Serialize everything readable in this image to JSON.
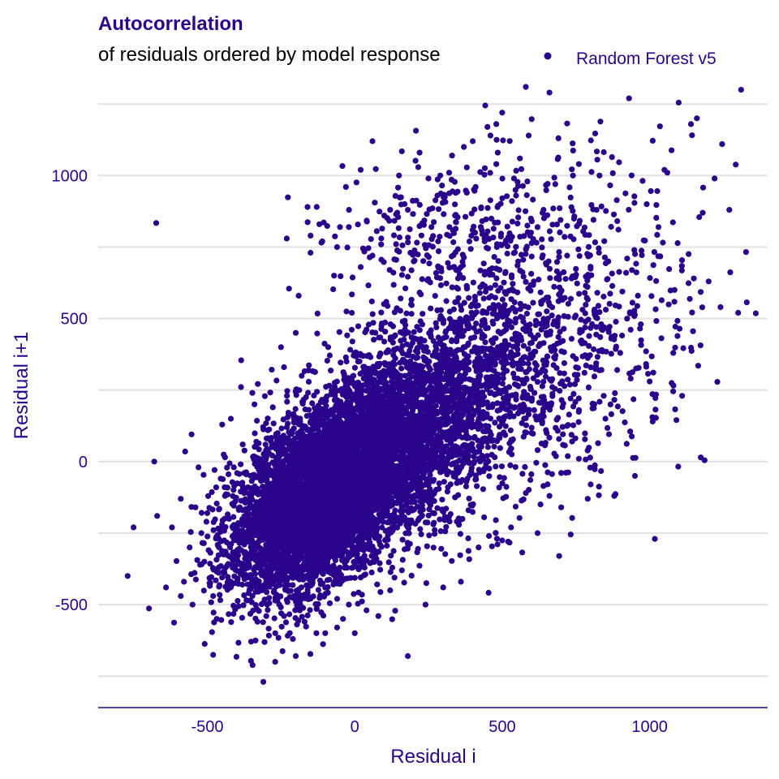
{
  "chart_data": {
    "type": "scatter",
    "title": "Autocorrelation",
    "subtitle": "of residuals ordered by model response",
    "xlabel": "Residual i",
    "ylabel": "Residual i+1",
    "xlim": [
      -870,
      1400
    ],
    "ylim": [
      -860,
      1330
    ],
    "x_ticks": [
      -500,
      0,
      500,
      1000
    ],
    "x_tick_labels": [
      "-500",
      "0",
      "500",
      "1000"
    ],
    "y_ticks": [
      -500,
      0,
      500,
      1000
    ],
    "y_tick_labels": [
      "-500",
      "0",
      "500",
      "1000"
    ],
    "grid": true,
    "legend_position": "top-right",
    "series": [
      {
        "name": "Random Forest v5",
        "color": "#2b048c",
        "points": [
          [
            -770,
            -400
          ],
          [
            -750,
            -230
          ],
          [
            -680,
            0
          ],
          [
            -670,
            -190
          ],
          [
            -640,
            -440
          ],
          [
            -620,
            -230
          ],
          [
            -590,
            -470
          ],
          [
            -590,
            -130
          ],
          [
            -560,
            -300
          ],
          [
            -550,
            -500
          ],
          [
            -540,
            -160
          ],
          [
            -530,
            -20
          ],
          [
            -520,
            -250
          ],
          [
            -510,
            -350
          ],
          [
            -500,
            -180
          ],
          [
            -480,
            -470
          ],
          [
            -470,
            -90
          ],
          [
            -460,
            -300
          ],
          [
            -450,
            -220
          ],
          [
            -440,
            -120
          ],
          [
            -430,
            -360
          ],
          [
            -420,
            -420
          ],
          [
            -420,
            150
          ],
          [
            -410,
            -20
          ],
          [
            -400,
            -250
          ],
          [
            -390,
            -160
          ],
          [
            -380,
            60
          ],
          [
            -370,
            -320
          ],
          [
            -360,
            -460
          ],
          [
            -350,
            -100
          ],
          [
            -340,
            200
          ],
          [
            -330,
            -560
          ],
          [
            -320,
            -200
          ],
          [
            -310,
            -770
          ],
          [
            -300,
            -540
          ],
          [
            -290,
            -380
          ],
          [
            -280,
            60
          ],
          [
            -270,
            -700
          ],
          [
            -260,
            -10
          ],
          [
            -250,
            400
          ],
          [
            -240,
            -540
          ],
          [
            -230,
            230
          ],
          [
            -220,
            -310
          ],
          [
            -210,
            -620
          ],
          [
            -200,
            -680
          ],
          [
            -190,
            580
          ],
          [
            -180,
            300
          ],
          [
            -170,
            -560
          ],
          [
            -160,
            890
          ],
          [
            -150,
            790
          ],
          [
            -140,
            -170
          ],
          [
            -130,
            -600
          ],
          [
            -120,
            830
          ],
          [
            -110,
            770
          ],
          [
            -100,
            -600
          ],
          [
            -90,
            400
          ],
          [
            -80,
            180
          ],
          [
            -70,
            650
          ],
          [
            -60,
            -580
          ],
          [
            -50,
            820
          ],
          [
            -40,
            -550
          ],
          [
            -30,
            960
          ],
          [
            -20,
            -500
          ],
          [
            -10,
            520
          ],
          [
            0,
            -600
          ],
          [
            20,
            680
          ],
          [
            40,
            -520
          ],
          [
            60,
            720
          ],
          [
            80,
            -540
          ],
          [
            100,
            860
          ],
          [
            120,
            -450
          ],
          [
            140,
            760
          ],
          [
            160,
            -380
          ],
          [
            180,
            880
          ],
          [
            180,
            -680
          ],
          [
            200,
            700
          ],
          [
            220,
            1080
          ],
          [
            240,
            -500
          ],
          [
            260,
            820
          ],
          [
            280,
            930
          ],
          [
            300,
            -440
          ],
          [
            320,
            1010
          ],
          [
            340,
            860
          ],
          [
            360,
            -420
          ],
          [
            380,
            940
          ],
          [
            400,
            1120
          ],
          [
            420,
            -300
          ],
          [
            440,
            780
          ],
          [
            460,
            1140
          ],
          [
            480,
            1040
          ],
          [
            500,
            1220
          ],
          [
            520,
            -280
          ],
          [
            540,
            990
          ],
          [
            560,
            1060
          ],
          [
            580,
            1310
          ],
          [
            600,
            840
          ],
          [
            620,
            -250
          ],
          [
            640,
            880
          ],
          [
            660,
            1290
          ],
          [
            680,
            970
          ],
          [
            700,
            -160
          ],
          [
            720,
            720
          ],
          [
            740,
            1000
          ],
          [
            760,
            1040
          ],
          [
            780,
            590
          ],
          [
            800,
            -80
          ],
          [
            820,
            880
          ],
          [
            840,
            460
          ],
          [
            860,
            700
          ],
          [
            880,
            -120
          ],
          [
            900,
            380
          ],
          [
            920,
            660
          ],
          [
            930,
            1270
          ],
          [
            950,
            -50
          ],
          [
            970,
            480
          ],
          [
            990,
            900
          ],
          [
            1010,
            140
          ],
          [
            1030,
            820
          ],
          [
            1050,
            1020
          ],
          [
            1080,
            380
          ],
          [
            1110,
            230
          ],
          [
            1140,
            1180
          ],
          [
            1160,
            1200
          ],
          [
            1180,
            870
          ],
          [
            1200,
            630
          ],
          [
            1220,
            990
          ],
          [
            1240,
            540
          ],
          [
            1270,
            880
          ],
          [
            1300,
            520
          ],
          [
            1310,
            1300
          ],
          [
            1150,
            640
          ],
          [
            1060,
            1010
          ],
          [
            1000,
            280
          ],
          [
            960,
            580
          ],
          [
            890,
            320
          ],
          [
            850,
            150
          ],
          [
            830,
            1000
          ],
          [
            790,
            -130
          ],
          [
            760,
            10
          ],
          [
            700,
            -40
          ],
          [
            660,
            -120
          ],
          [
            620,
            40
          ],
          [
            580,
            -110
          ],
          [
            560,
            180
          ],
          [
            530,
            -230
          ],
          [
            480,
            1180
          ],
          [
            450,
            1170
          ],
          [
            410,
            960
          ],
          [
            370,
            1100
          ],
          [
            330,
            1070
          ],
          [
            290,
            1000
          ],
          [
            250,
            990
          ],
          [
            150,
            1000
          ],
          [
            120,
            880
          ],
          [
            90,
            780
          ],
          [
            60,
            1120
          ],
          [
            20,
            1020
          ],
          [
            -20,
            820
          ],
          [
            -60,
            750
          ],
          [
            -150,
            730
          ],
          [
            -200,
            450
          ],
          [
            -240,
            330
          ]
        ],
        "clusters": [
          {
            "cx": -110,
            "cy": -120,
            "sx": 150,
            "sy": 170,
            "rho": 0.5,
            "n": 5200
          },
          {
            "cx": 140,
            "cy": 80,
            "sx": 200,
            "sy": 200,
            "rho": 0.45,
            "n": 2400
          },
          {
            "cx": 420,
            "cy": 300,
            "sx": 230,
            "sy": 260,
            "rho": 0.35,
            "n": 1000
          },
          {
            "cx": 780,
            "cy": 480,
            "sx": 230,
            "sy": 300,
            "rho": 0.25,
            "n": 380
          },
          {
            "cx": 300,
            "cy": 820,
            "sx": 240,
            "sy": 140,
            "rho": 0.2,
            "n": 220
          }
        ]
      }
    ]
  },
  "legend": {
    "label": "Random Forest v5",
    "color": "#2b048c"
  },
  "colors": {
    "accent": "#2b048c",
    "grid": "#e3e3e3",
    "text": "#000000"
  }
}
